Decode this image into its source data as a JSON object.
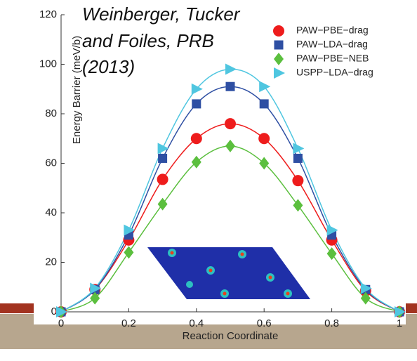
{
  "chart_data": {
    "type": "line",
    "annotation": [
      "Weinberger, Tucker",
      "and Foiles, PRB",
      "(2013)"
    ],
    "x_label": "Reaction Coordinate",
    "y_label": "Energy Barrier (meV/b)",
    "x": [
      0,
      0.1,
      0.2,
      0.3,
      0.4,
      0.5,
      0.6,
      0.7,
      0.8,
      0.9,
      1
    ],
    "series": [
      {
        "name": "PAW−PBE−drag",
        "color": "#ee1c1c",
        "marker": "circle",
        "values": [
          0,
          9,
          29,
          53.5,
          70,
          76,
          70,
          53,
          29,
          8.5,
          0
        ]
      },
      {
        "name": "PAW−LDA−drag",
        "color": "#2e4fa3",
        "marker": "square",
        "values": [
          0,
          9,
          31,
          62,
          84,
          91,
          84,
          62,
          31,
          9,
          0
        ]
      },
      {
        "name": "PAW−PBE−NEB",
        "color": "#5bbf3e",
        "marker": "diamond",
        "values": [
          0,
          5.5,
          24,
          43.5,
          60.5,
          67,
          60,
          43,
          23.5,
          5.5,
          0
        ]
      },
      {
        "name": "USPP−LDA−drag",
        "color": "#4fc6e0",
        "marker": "triangle",
        "values": [
          0,
          9.5,
          33,
          66,
          90,
          98,
          91,
          66,
          33,
          9.5,
          0
        ]
      }
    ],
    "xlim": [
      0,
      1
    ],
    "xticks": [
      0,
      0.2,
      0.4,
      0.6,
      0.8,
      1
    ],
    "ylim": [
      0,
      120
    ],
    "yticks": [
      0,
      20,
      40,
      60,
      80,
      100,
      120
    ],
    "grid": false
  }
}
